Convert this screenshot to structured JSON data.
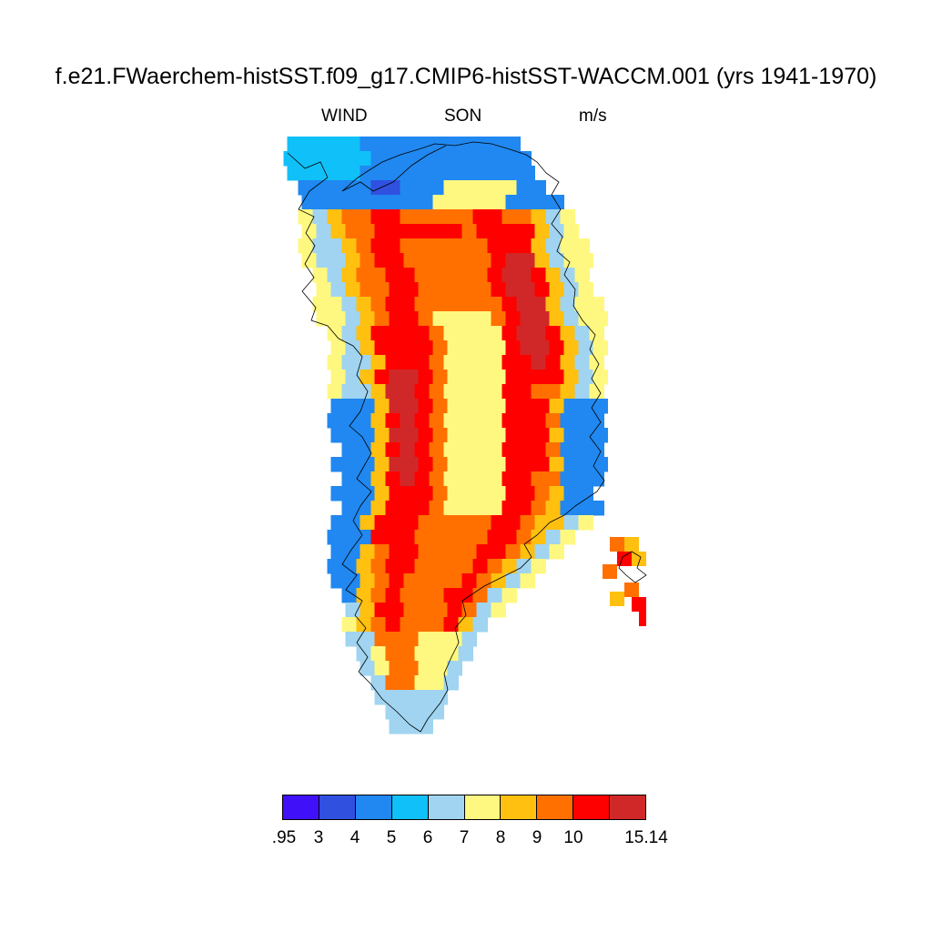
{
  "figure": {
    "title": "f.e21.FWaerchem-histSST.f09_g17.CMIP6-histSST-WACCM.001 (yrs 1941-1970)",
    "left_label": "WIND",
    "center_label": "SON",
    "right_label": "m/s"
  },
  "colorbar": {
    "colors": [
      "#4010f8",
      "#3050e0",
      "#2088f0",
      "#10c0f8",
      "#a0d4f0",
      "#fff880",
      "#ffc010",
      "#ff7000",
      "#ff0000",
      "#d02828"
    ],
    "labels": [
      ".95",
      "3",
      "4",
      "5",
      "6",
      "7",
      "8",
      "9",
      "10",
      "15.14"
    ]
  },
  "map": {
    "region": "Greenland",
    "variable": "WIND",
    "season": "SON",
    "units": "m/s",
    "cell_legend": "0=no data, 1..10 = colorbar bin index"
  }
}
